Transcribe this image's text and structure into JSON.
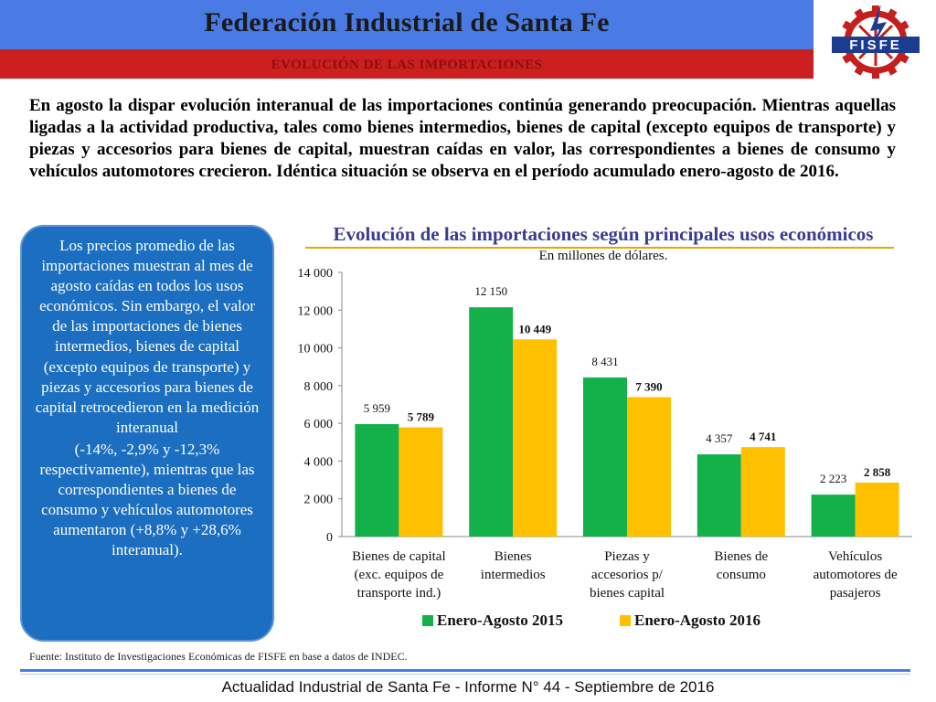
{
  "header": {
    "title": "Federación Industrial de Santa Fe",
    "subtitle": "EVOLUCIÓN DE LAS IMPORTACIONES",
    "logo_text": "FISFE"
  },
  "intro": "En agosto la dispar evolución interanual de las importaciones continúa generando preocupación. Mientras aquellas ligadas a la actividad productiva, tales como bienes intermedios, bienes de capital (excepto equipos de transporte) y piezas y accesorios para bienes de capital, muestran caídas en valor, las correspondientes a bienes de consumo y vehículos automotores crecieron. Idéntica situación se observa en el período acumulado enero-agosto de 2016.",
  "sidebar": {
    "paragraph_1": "Los precios promedio de las importaciones muestran al mes de agosto caídas en todos los usos económicos. Sin embargo, el valor de las importaciones de bienes intermedios, bienes de capital (excepto equipos de transporte) y piezas y accesorios para bienes de capital retrocedieron en la medición interanual",
    "paragraph_2": "(-14%, -2,9% y -12,3% respectivamente), mientras que las correspondientes a bienes de consumo y vehículos automotores aumentaron (+8,8% y +28,6% interanual)."
  },
  "chart_data": {
    "type": "bar",
    "title": "Evolución de las importaciones según principales usos económicos",
    "subtitle": "En millones de dólares.",
    "categories": [
      [
        "Bienes de capital",
        "(exc. equipos de",
        "transporte ind.)"
      ],
      [
        "Bienes",
        "intermedios"
      ],
      [
        "Piezas y",
        "accesorios p/",
        "bienes capital"
      ],
      [
        "Bienes de",
        "consumo"
      ],
      [
        "Vehículos",
        "automotores de",
        "pasajeros"
      ]
    ],
    "series": [
      {
        "name": "Enero-Agosto 2015",
        "color": "#14b04a",
        "values": [
          5959,
          12150,
          8431,
          4357,
          2223
        ],
        "labels": [
          "5 959",
          "12 150",
          "8 431",
          "4 357",
          "2 223"
        ]
      },
      {
        "name": "Enero-Agosto 2016",
        "color": "#ffc000",
        "values": [
          5789,
          10449,
          7390,
          4741,
          2858
        ],
        "labels": [
          "5 789",
          "10 449",
          "7 390",
          "4 741",
          "2 858"
        ]
      }
    ],
    "ylim": [
      0,
      14000
    ],
    "yticks": [
      0,
      2000,
      4000,
      6000,
      8000,
      10000,
      12000,
      14000
    ],
    "ytick_labels": [
      "0",
      "2 000",
      "4 000",
      "6 000",
      "8 000",
      "10 000",
      "12 000",
      "14 000"
    ],
    "grid": false,
    "legend": "bottom"
  },
  "source": "Fuente: Instituto de Investigaciones Económicas de  FISFE en base a datos de INDEC.",
  "footer": "Actualidad Industrial de Santa Fe - Informe N° 44 - Septiembre de 2016"
}
